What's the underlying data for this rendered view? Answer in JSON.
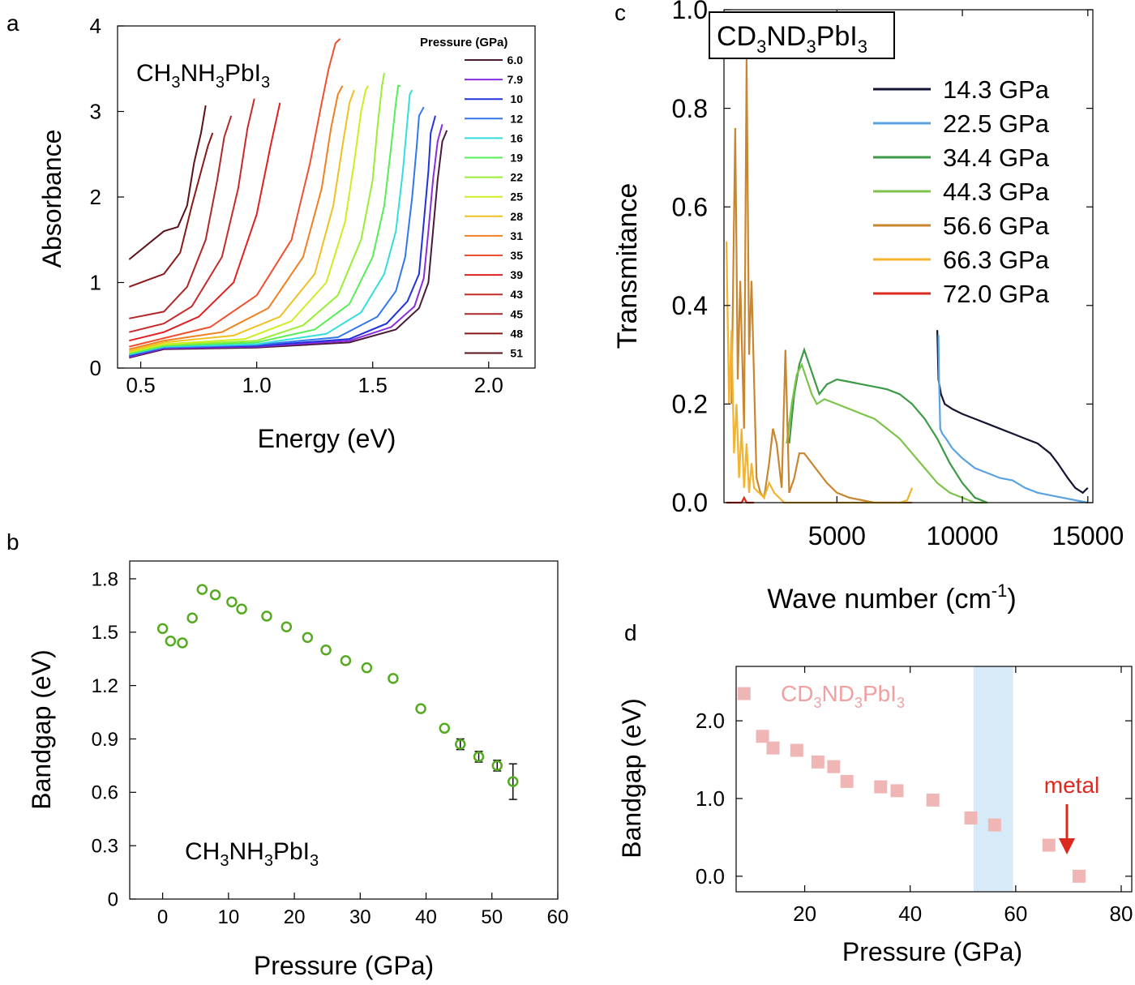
{
  "chart_data": [
    {
      "panel_label": "a",
      "type": "line",
      "xlabel": "Energy (eV)",
      "ylabel": "Absorbance",
      "xlim": [
        0.4,
        2.2
      ],
      "ylim": [
        0,
        4
      ],
      "xticks": [
        0.5,
        1.0,
        1.5,
        2.0
      ],
      "xtick_labels": [
        "0.5",
        "1.0",
        "1.5",
        "2.0"
      ],
      "yticks": [
        0,
        1,
        2,
        3,
        4
      ],
      "ytick_labels": [
        "0",
        "1",
        "2",
        "3",
        "4"
      ],
      "annotation": {
        "base": "CH",
        "s1": "3",
        "mid": "NH",
        "s2": "3",
        "tail": "PbI",
        "s3": "3"
      },
      "legend_title": "Pressure (GPa)",
      "legend_position": "top-right",
      "series": [
        {
          "name": "6.0",
          "color": "#4a1a3a",
          "x": [
            0.45,
            0.6,
            1.0,
            1.4,
            1.6,
            1.7,
            1.74,
            1.76,
            1.78,
            1.8,
            1.82
          ],
          "y": [
            0.12,
            0.22,
            0.24,
            0.3,
            0.45,
            0.7,
            1.0,
            1.6,
            2.2,
            2.65,
            2.78
          ]
        },
        {
          "name": "7.9",
          "color": "#8a2be2",
          "x": [
            0.45,
            0.6,
            1.0,
            1.4,
            1.58,
            1.68,
            1.72,
            1.74,
            1.76,
            1.78,
            1.8
          ],
          "y": [
            0.13,
            0.23,
            0.25,
            0.32,
            0.48,
            0.72,
            1.05,
            1.6,
            2.2,
            2.65,
            2.85
          ]
        },
        {
          "name": "10",
          "color": "#2233dd",
          "x": [
            0.45,
            0.6,
            1.0,
            1.4,
            1.56,
            1.65,
            1.7,
            1.72,
            1.74,
            1.75,
            1.77
          ],
          "y": [
            0.14,
            0.24,
            0.26,
            0.34,
            0.52,
            0.78,
            1.1,
            1.7,
            2.3,
            2.75,
            2.95
          ]
        },
        {
          "name": "12",
          "color": "#3377ee",
          "x": [
            0.45,
            0.6,
            1.0,
            1.35,
            1.52,
            1.6,
            1.64,
            1.67,
            1.69,
            1.7,
            1.72
          ],
          "y": [
            0.15,
            0.24,
            0.27,
            0.36,
            0.6,
            0.9,
            1.3,
            2.0,
            2.6,
            2.95,
            3.05
          ]
        },
        {
          "name": "16",
          "color": "#33dddd",
          "x": [
            0.45,
            0.6,
            1.0,
            1.3,
            1.45,
            1.55,
            1.6,
            1.63,
            1.65,
            1.66,
            1.67
          ],
          "y": [
            0.16,
            0.25,
            0.28,
            0.4,
            0.65,
            1.1,
            1.6,
            2.3,
            2.9,
            3.2,
            3.25
          ]
        },
        {
          "name": "19",
          "color": "#55ee55",
          "x": [
            0.45,
            0.6,
            1.0,
            1.25,
            1.4,
            1.5,
            1.55,
            1.58,
            1.6,
            1.61,
            1.62
          ],
          "y": [
            0.17,
            0.26,
            0.3,
            0.45,
            0.75,
            1.3,
            1.9,
            2.6,
            3.1,
            3.3,
            3.3
          ]
        },
        {
          "name": "22",
          "color": "#99ee33",
          "x": [
            0.45,
            0.6,
            1.0,
            1.2,
            1.35,
            1.45,
            1.5,
            1.52,
            1.54,
            1.55
          ],
          "y": [
            0.18,
            0.27,
            0.32,
            0.5,
            0.85,
            1.5,
            2.2,
            2.8,
            3.3,
            3.45
          ]
        },
        {
          "name": "25",
          "color": "#ccee22",
          "x": [
            0.45,
            0.6,
            0.95,
            1.15,
            1.3,
            1.38,
            1.42,
            1.45,
            1.47,
            1.48
          ],
          "y": [
            0.19,
            0.28,
            0.34,
            0.55,
            1.0,
            1.7,
            2.4,
            3.0,
            3.25,
            3.3
          ]
        },
        {
          "name": "28",
          "color": "#f0c020",
          "x": [
            0.45,
            0.6,
            0.9,
            1.1,
            1.25,
            1.33,
            1.37,
            1.4,
            1.42
          ],
          "y": [
            0.2,
            0.3,
            0.38,
            0.6,
            1.1,
            1.9,
            2.6,
            3.1,
            3.25
          ]
        },
        {
          "name": "31",
          "color": "#f08020",
          "x": [
            0.45,
            0.6,
            0.85,
            1.05,
            1.2,
            1.28,
            1.32,
            1.35,
            1.37
          ],
          "y": [
            0.22,
            0.32,
            0.42,
            0.7,
            1.3,
            2.1,
            2.8,
            3.2,
            3.3
          ]
        },
        {
          "name": "35",
          "color": "#f05030",
          "x": [
            0.45,
            0.6,
            0.8,
            1.0,
            1.15,
            1.23,
            1.28,
            1.31,
            1.34,
            1.36
          ],
          "y": [
            0.25,
            0.35,
            0.48,
            0.85,
            1.5,
            2.4,
            3.1,
            3.5,
            3.8,
            3.85
          ]
        },
        {
          "name": "39",
          "color": "#e02020",
          "x": [
            0.45,
            0.6,
            0.75,
            0.9,
            1.0,
            1.06,
            1.1
          ],
          "y": [
            0.32,
            0.42,
            0.6,
            1.0,
            1.8,
            2.6,
            3.1
          ]
        },
        {
          "name": "43",
          "color": "#c82a2a",
          "x": [
            0.45,
            0.6,
            0.72,
            0.85,
            0.92,
            0.96,
            0.99
          ],
          "y": [
            0.42,
            0.52,
            0.72,
            1.3,
            2.1,
            2.8,
            3.15
          ]
        },
        {
          "name": "45",
          "color": "#b02828",
          "x": [
            0.45,
            0.6,
            0.7,
            0.78,
            0.83,
            0.86,
            0.89
          ],
          "y": [
            0.58,
            0.66,
            0.95,
            1.5,
            2.2,
            2.7,
            2.95
          ]
        },
        {
          "name": "48",
          "color": "#8a1818",
          "x": [
            0.45,
            0.6,
            0.67,
            0.72,
            0.76,
            0.79,
            0.81
          ],
          "y": [
            0.95,
            1.1,
            1.35,
            1.9,
            2.3,
            2.6,
            2.75
          ]
        },
        {
          "name": "51",
          "color": "#5a1218",
          "x": [
            0.45,
            0.6,
            0.66,
            0.7,
            0.73,
            0.76,
            0.78
          ],
          "y": [
            1.27,
            1.6,
            1.65,
            1.9,
            2.4,
            2.75,
            3.07
          ]
        }
      ]
    },
    {
      "panel_label": "b",
      "type": "scatter",
      "xlabel": "Pressure (GPa)",
      "ylabel": "Bandgap (eV)",
      "xlim": [
        -5,
        60
      ],
      "ylim": [
        0,
        1.9
      ],
      "xticks": [
        0,
        10,
        20,
        30,
        40,
        50,
        60
      ],
      "xtick_labels": [
        "0",
        "10",
        "20",
        "30",
        "40",
        "50",
        "60"
      ],
      "yticks": [
        0,
        0.3,
        0.6,
        0.9,
        1.2,
        1.5,
        1.8
      ],
      "ytick_labels": [
        "0",
        "0.3",
        "0.6",
        "0.9",
        "1.2",
        "1.5",
        "1.8"
      ],
      "annotation": {
        "base": "CH",
        "s1": "3",
        "mid": "NH",
        "s2": "3",
        "tail": "PbI",
        "s3": "3"
      },
      "marker_color": "#55aa22",
      "x": [
        0.0,
        1.2,
        3.0,
        4.5,
        6.0,
        8.0,
        10.5,
        12.0,
        15.8,
        18.8,
        22.0,
        24.8,
        27.8,
        31.0,
        35.0,
        39.2,
        42.8,
        45.2,
        48.0,
        50.8,
        53.2
      ],
      "y": [
        1.52,
        1.45,
        1.44,
        1.58,
        1.74,
        1.71,
        1.67,
        1.63,
        1.59,
        1.53,
        1.47,
        1.4,
        1.34,
        1.3,
        1.24,
        1.07,
        0.96,
        0.87,
        0.8,
        0.75,
        0.66
      ],
      "yerr": [
        0,
        0,
        0,
        0,
        0,
        0,
        0,
        0,
        0,
        0,
        0,
        0,
        0,
        0,
        0,
        0,
        0,
        0.03,
        0.03,
        0.03,
        0.1
      ]
    },
    {
      "panel_label": "c",
      "type": "line",
      "xlabel": "Wave number (cm",
      "xlabel_sup": "-1",
      "xlabel_end": ")",
      "ylabel": "Transmitance",
      "xlim": [
        500,
        15200
      ],
      "ylim": [
        0,
        1.0
      ],
      "xticks": [
        5000,
        10000,
        15000
      ],
      "xtick_labels": [
        "5000",
        "10000",
        "15000"
      ],
      "yticks": [
        0,
        0.2,
        0.4,
        0.6,
        0.8,
        1.0
      ],
      "ytick_labels": [
        "0.0",
        "0.2",
        "0.4",
        "0.6",
        "0.8",
        "1.0"
      ],
      "annotation": {
        "base": "CD",
        "s1": "3",
        "mid": "ND",
        "s2": "3",
        "tail": "PbI",
        "s3": "3"
      },
      "legend_position": "top-right",
      "series": [
        {
          "name": "14.3 GPa",
          "color": "#141433",
          "x": [
            9000,
            9050,
            9150,
            9300,
            9600,
            10000,
            10500,
            11000,
            11500,
            12000,
            12500,
            13000,
            13500,
            13800,
            14200,
            14500,
            14800,
            15000
          ],
          "y": [
            0.35,
            0.25,
            0.22,
            0.2,
            0.19,
            0.18,
            0.17,
            0.16,
            0.15,
            0.14,
            0.13,
            0.12,
            0.1,
            0.08,
            0.05,
            0.03,
            0.02,
            0.03
          ]
        },
        {
          "name": "22.5 GPa",
          "color": "#5ba3e0",
          "x": [
            9050,
            9070,
            9120,
            9200,
            9350,
            9600,
            10000,
            10500,
            11000,
            11500,
            12000,
            12500,
            13000,
            13500,
            14000,
            14500,
            15000
          ],
          "y": [
            0.34,
            0.25,
            0.15,
            0.14,
            0.13,
            0.11,
            0.09,
            0.07,
            0.06,
            0.05,
            0.045,
            0.03,
            0.02,
            0.015,
            0.01,
            0.005,
            0.0
          ]
        },
        {
          "name": "34.4 GPa",
          "color": "#3d9a45",
          "x": [
            3100,
            3300,
            3500,
            3700,
            3900,
            4100,
            4300,
            4600,
            5000,
            5500,
            6000,
            6500,
            7000,
            7500,
            8000,
            8500,
            9000,
            9500,
            10000,
            10500,
            11000
          ],
          "y": [
            0.12,
            0.22,
            0.28,
            0.31,
            0.28,
            0.25,
            0.22,
            0.24,
            0.25,
            0.245,
            0.24,
            0.235,
            0.23,
            0.22,
            0.2,
            0.17,
            0.13,
            0.08,
            0.04,
            0.01,
            0.0
          ]
        },
        {
          "name": "44.3 GPa",
          "color": "#7cc44a",
          "x": [
            3000,
            3200,
            3400,
            3600,
            3800,
            4000,
            4200,
            4500,
            5000,
            5500,
            6000,
            6500,
            7000,
            7500,
            8000,
            8500,
            9000,
            9500,
            10000,
            10500,
            11000
          ],
          "y": [
            0.12,
            0.2,
            0.26,
            0.28,
            0.25,
            0.22,
            0.2,
            0.21,
            0.2,
            0.19,
            0.18,
            0.17,
            0.15,
            0.13,
            0.1,
            0.07,
            0.04,
            0.02,
            0.01,
            0.0,
            0.0
          ]
        },
        {
          "name": "56.6 GPa",
          "color": "#c98630",
          "x": [
            800,
            950,
            1050,
            1150,
            1300,
            1400,
            1500,
            1600,
            1800,
            1950,
            2100,
            2300,
            2450,
            2600,
            2800,
            2950,
            3100,
            3300,
            3500,
            3700,
            4000,
            4300,
            4600,
            5000,
            5500,
            6000,
            6500,
            7000,
            7500,
            8000
          ],
          "y": [
            0.2,
            0.76,
            0.25,
            0.45,
            0.15,
            0.9,
            0.3,
            0.45,
            0.05,
            0.02,
            0.01,
            0.08,
            0.15,
            0.12,
            0.03,
            0.31,
            0.02,
            0.05,
            0.1,
            0.1,
            0.08,
            0.06,
            0.04,
            0.02,
            0.01,
            0.005,
            0.0,
            0.0,
            0.0,
            0.0
          ]
        },
        {
          "name": "66.3 GPa",
          "color": "#f2b42e",
          "x": [
            600,
            700,
            800,
            900,
            1000,
            1100,
            1200,
            1300,
            1400,
            1500,
            1600,
            1700,
            1900,
            2100,
            2300,
            2500,
            2700,
            2900,
            3100,
            3500,
            4000,
            5000,
            6000,
            7000,
            7500,
            7800,
            8000
          ],
          "y": [
            0.53,
            0.2,
            0.35,
            0.1,
            0.2,
            0.05,
            0.15,
            0.03,
            0.12,
            0.02,
            0.08,
            0.03,
            0.02,
            0.01,
            0.04,
            0.02,
            0.01,
            0.0,
            0.0,
            0.0,
            0.0,
            0.0,
            0.0,
            0.0,
            0.0,
            0.005,
            0.03
          ]
        },
        {
          "name": "72.0 GPa",
          "color": "#dd2a1f",
          "x": [
            600,
            800,
            1000,
            1200,
            1300,
            1400,
            1500,
            1600,
            1700
          ],
          "y": [
            0.0,
            0.0,
            0.0,
            0.0,
            0.01,
            0.0,
            0.0,
            0.0,
            0.0
          ]
        }
      ]
    },
    {
      "panel_label": "d",
      "type": "scatter",
      "xlabel": "Pressure (GPa)",
      "ylabel": "Bandgap (eV)",
      "xlim": [
        7,
        82
      ],
      "ylim": [
        -0.2,
        2.7
      ],
      "xticks": [
        20,
        40,
        60,
        80
      ],
      "xtick_labels": [
        "20",
        "40",
        "60",
        "80"
      ],
      "yticks": [
        0,
        1.0,
        2.0
      ],
      "ytick_labels": [
        "0.0",
        "1.0",
        "2.0"
      ],
      "annotation": {
        "base": "CD",
        "s1": "3",
        "mid": "ND",
        "s2": "3",
        "tail": "PbI",
        "s3": "3"
      },
      "metal_label": "metal",
      "shaded_band": [
        52,
        59.5
      ],
      "marker_color": "#f0b6b6",
      "x": [
        8.5,
        12.0,
        14.0,
        18.5,
        22.5,
        25.5,
        28.0,
        34.4,
        37.5,
        44.3,
        51.5,
        56.0,
        66.3,
        72.0
      ],
      "y": [
        2.35,
        1.8,
        1.65,
        1.62,
        1.47,
        1.41,
        1.22,
        1.15,
        1.1,
        0.98,
        0.75,
        0.66,
        0.4,
        0.0
      ]
    }
  ]
}
